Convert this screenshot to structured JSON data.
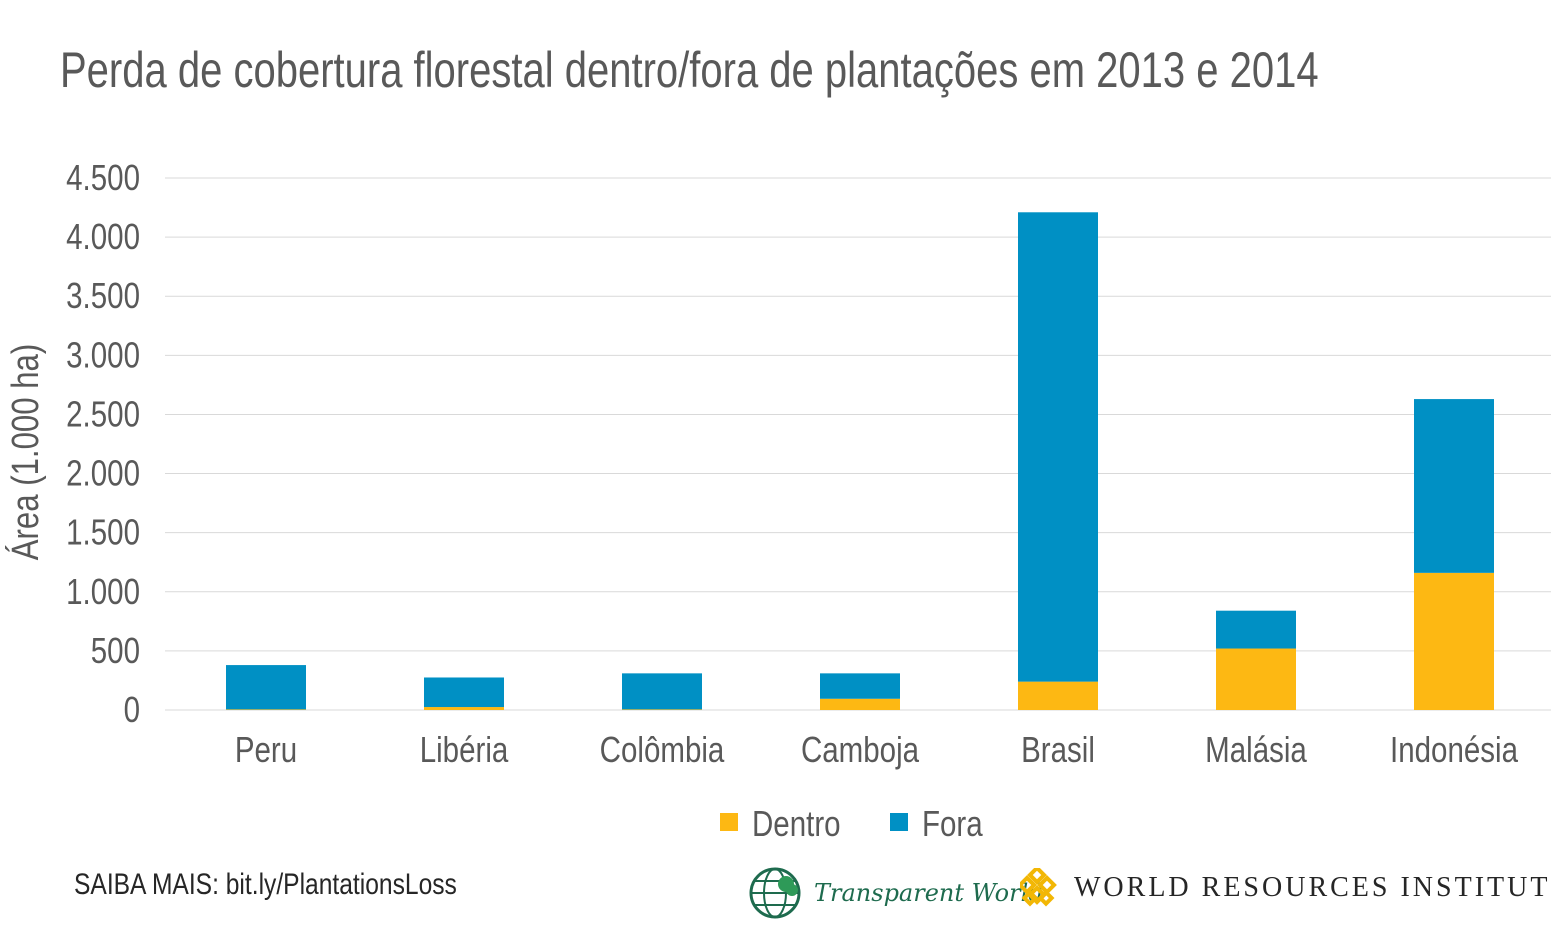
{
  "chart_data": {
    "type": "bar",
    "stacked": true,
    "title": "Perda de cobertura florestal dentro/fora de plantações em 2013 e 2014",
    "ylabel": "Área (1.000 ha)",
    "xlabel": "",
    "ylim": [
      0,
      4500
    ],
    "yticks": [
      0,
      500,
      1000,
      1500,
      2000,
      2500,
      3000,
      3500,
      4000,
      4500
    ],
    "ytick_labels": [
      "0",
      "500",
      "1.000",
      "1.500",
      "2.000",
      "2.500",
      "3.000",
      "3.500",
      "4.000",
      "4.500"
    ],
    "grid": true,
    "legend_position": "bottom",
    "categories": [
      "Peru",
      "Libéria",
      "Colômbia",
      "Camboja",
      "Brasil",
      "Malásia",
      "Indonésia"
    ],
    "series": [
      {
        "name": "Dentro",
        "color": "#FDB813",
        "values": [
          5,
          25,
          5,
          95,
          240,
          520,
          1160
        ]
      },
      {
        "name": "Fora",
        "color": "#0090C4",
        "values": [
          375,
          250,
          305,
          215,
          3970,
          320,
          1470
        ]
      }
    ]
  },
  "footer": {
    "source_note": "SAIBA MAIS: bit.ly/PlantationsLoss",
    "logo_transparent_world": "Transparent World",
    "logo_wri": "WORLD RESOURCES INSTITUTE"
  },
  "colors": {
    "text": "#595959",
    "grid": "#d9d9d9",
    "tw_green": "#1e6b4e",
    "wri_gold": "#f2b705"
  }
}
